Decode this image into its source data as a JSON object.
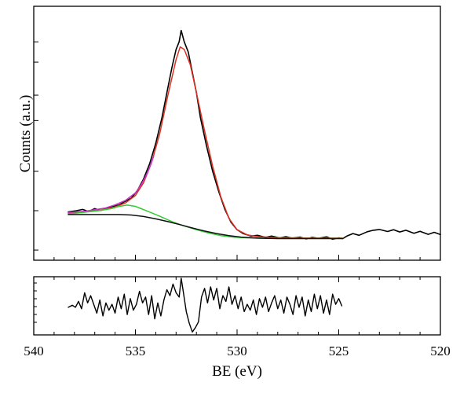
{
  "chart_data": [
    {
      "panel": "main",
      "type": "line",
      "xlabel": "BE (eV)",
      "ylabel": "Counts (a.u.)",
      "x_reversed": true,
      "xlim": [
        540,
        520
      ],
      "ylim": [
        0,
        100
      ],
      "grid": false,
      "series": [
        {
          "color": "#000000",
          "points": [
            [
              538.3,
              19
            ],
            [
              537.9,
              19.5
            ],
            [
              537.6,
              20
            ],
            [
              537.3,
              19.2
            ],
            [
              537.0,
              20.3
            ],
            [
              536.7,
              19.6
            ],
            [
              536.4,
              20.6
            ],
            [
              536.1,
              21.2
            ],
            [
              535.8,
              21.8
            ],
            [
              535.5,
              23.2
            ],
            [
              535.2,
              24.5
            ],
            [
              534.9,
              27.5
            ],
            [
              534.6,
              32
            ],
            [
              534.3,
              38
            ],
            [
              534.0,
              46
            ],
            [
              533.7,
              56
            ],
            [
              533.4,
              68
            ],
            [
              533.2,
              76
            ],
            [
              533.0,
              83
            ],
            [
              532.85,
              86
            ],
            [
              532.75,
              90.5
            ],
            [
              532.6,
              86
            ],
            [
              532.4,
              82
            ],
            [
              532.2,
              74
            ],
            [
              532.0,
              66
            ],
            [
              531.8,
              56
            ],
            [
              531.5,
              45
            ],
            [
              531.2,
              35
            ],
            [
              530.9,
              27
            ],
            [
              530.6,
              20
            ],
            [
              530.3,
              15
            ],
            [
              530.0,
              12
            ],
            [
              529.7,
              10.5
            ],
            [
              529.3,
              9.5
            ],
            [
              529.0,
              9.8
            ],
            [
              528.6,
              9
            ],
            [
              528.3,
              9.5
            ],
            [
              527.9,
              8.8
            ],
            [
              527.6,
              9.3
            ],
            [
              527.3,
              8.7
            ],
            [
              526.9,
              9.1
            ],
            [
              526.6,
              8.4
            ],
            [
              526.3,
              9
            ],
            [
              526.0,
              8.6
            ],
            [
              525.6,
              9.2
            ],
            [
              525.3,
              8.3
            ],
            [
              525.0,
              8.8
            ],
            [
              524.8,
              8.5
            ],
            [
              524.6,
              9.5
            ],
            [
              524.3,
              10.5
            ],
            [
              524.0,
              9.8
            ],
            [
              523.6,
              11.2
            ],
            [
              523.3,
              11.8
            ],
            [
              523.0,
              12.1
            ],
            [
              522.6,
              11.3
            ],
            [
              522.3,
              12
            ],
            [
              522.0,
              11.1
            ],
            [
              521.7,
              11.8
            ],
            [
              521.3,
              10.6
            ],
            [
              521.0,
              11.4
            ],
            [
              520.6,
              10.2
            ],
            [
              520.3,
              11
            ],
            [
              520.0,
              10.1
            ]
          ]
        },
        {
          "color": "#e03020",
          "points": [
            [
              538.3,
              18.5
            ],
            [
              537.5,
              19
            ],
            [
              536.5,
              20
            ],
            [
              536.0,
              21
            ],
            [
              535.5,
              22.5
            ],
            [
              535.0,
              25.5
            ],
            [
              534.6,
              30.5
            ],
            [
              534.2,
              38.5
            ],
            [
              533.8,
              50
            ],
            [
              533.4,
              65
            ],
            [
              533.0,
              79
            ],
            [
              532.8,
              84
            ],
            [
              532.6,
              83
            ],
            [
              532.3,
              77
            ],
            [
              532.0,
              66
            ],
            [
              531.6,
              51
            ],
            [
              531.2,
              37
            ],
            [
              530.8,
              25
            ],
            [
              530.4,
              16.5
            ],
            [
              530.0,
              12
            ],
            [
              529.5,
              10
            ],
            [
              529.0,
              9.3
            ],
            [
              528.0,
              8.9
            ],
            [
              527.0,
              8.8
            ],
            [
              526.0,
              8.7
            ],
            [
              525.0,
              8.7
            ],
            [
              524.8,
              8.7
            ]
          ]
        },
        {
          "color": "#cc33cc",
          "points": [
            [
              538.3,
              18.8
            ],
            [
              537.5,
              19.3
            ],
            [
              536.5,
              20.5
            ],
            [
              536.0,
              21.8
            ],
            [
              535.5,
              23.5
            ],
            [
              535.0,
              26.5
            ],
            [
              534.7,
              30
            ],
            [
              534.4,
              34.5
            ],
            [
              534.1,
              41
            ]
          ]
        },
        {
          "color": "#33cc33",
          "points": [
            [
              538.3,
              18.2
            ],
            [
              537.5,
              18.9
            ],
            [
              536.8,
              19.5
            ],
            [
              536.2,
              20.3
            ],
            [
              535.8,
              21.2
            ],
            [
              535.4,
              21.7
            ],
            [
              535.0,
              21.2
            ],
            [
              534.4,
              19.3
            ],
            [
              533.8,
              17.3
            ],
            [
              533.2,
              15.2
            ],
            [
              532.6,
              13.5
            ],
            [
              532.0,
              12
            ],
            [
              531.4,
              10.7
            ],
            [
              530.8,
              9.7
            ],
            [
              530.2,
              9.1
            ],
            [
              529.5,
              8.8
            ],
            [
              528.5,
              8.6
            ],
            [
              527.5,
              8.6
            ],
            [
              526.5,
              8.6
            ],
            [
              525.5,
              8.6
            ],
            [
              524.8,
              8.6
            ]
          ]
        },
        {
          "color": "#111111",
          "points": [
            [
              538.3,
              18
            ],
            [
              537.5,
              18
            ],
            [
              536.5,
              18
            ],
            [
              535.8,
              18
            ],
            [
              535.2,
              17.8
            ],
            [
              534.6,
              17.2
            ],
            [
              534.0,
              16.3
            ],
            [
              533.4,
              15.2
            ],
            [
              532.8,
              14
            ],
            [
              532.2,
              12.7
            ],
            [
              531.6,
              11.5
            ],
            [
              531.0,
              10.5
            ],
            [
              530.4,
              9.7
            ],
            [
              529.8,
              9.1
            ],
            [
              529.0,
              8.7
            ],
            [
              528.0,
              8.5
            ],
            [
              527.0,
              8.5
            ],
            [
              526.0,
              8.5
            ],
            [
              525.0,
              8.5
            ],
            [
              524.8,
              8.5
            ]
          ]
        }
      ]
    },
    {
      "panel": "residual",
      "type": "line",
      "xlabel": "BE (eV)",
      "x_reversed": true,
      "xlim": [
        540,
        520
      ],
      "ylim": [
        -1,
        1
      ],
      "xticks": [
        540,
        535,
        530,
        525,
        520
      ],
      "xtick_labels": [
        "540",
        "535",
        "530",
        "525",
        "520"
      ],
      "series": [
        {
          "color": "#000000",
          "points": [
            [
              538.3,
              -0.05
            ],
            [
              538.1,
              0.02
            ],
            [
              537.95,
              -0.05
            ],
            [
              537.8,
              0.15
            ],
            [
              537.65,
              -0.1
            ],
            [
              537.5,
              0.45
            ],
            [
              537.35,
              0.1
            ],
            [
              537.2,
              0.35
            ],
            [
              537.05,
              0.05
            ],
            [
              536.9,
              -0.25
            ],
            [
              536.75,
              0.2
            ],
            [
              536.6,
              -0.35
            ],
            [
              536.45,
              0.1
            ],
            [
              536.3,
              -0.15
            ],
            [
              536.15,
              0.05
            ],
            [
              536.0,
              -0.25
            ],
            [
              535.85,
              0.3
            ],
            [
              535.7,
              -0.1
            ],
            [
              535.55,
              0.4
            ],
            [
              535.4,
              -0.3
            ],
            [
              535.25,
              0.25
            ],
            [
              535.1,
              -0.15
            ],
            [
              534.95,
              0.05
            ],
            [
              534.8,
              0.5
            ],
            [
              534.65,
              0.1
            ],
            [
              534.5,
              0.3
            ],
            [
              534.35,
              -0.3
            ],
            [
              534.2,
              0.35
            ],
            [
              534.05,
              -0.45
            ],
            [
              533.9,
              0.1
            ],
            [
              533.75,
              -0.35
            ],
            [
              533.6,
              0.2
            ],
            [
              533.45,
              0.55
            ],
            [
              533.3,
              0.35
            ],
            [
              533.15,
              0.75
            ],
            [
              533.0,
              0.45
            ],
            [
              532.85,
              0.3
            ],
            [
              532.75,
              0.95
            ],
            [
              532.65,
              0.5
            ],
            [
              532.5,
              -0.2
            ],
            [
              532.35,
              -0.6
            ],
            [
              532.2,
              -0.9
            ],
            [
              532.05,
              -0.75
            ],
            [
              531.9,
              -0.55
            ],
            [
              531.75,
              0.3
            ],
            [
              531.6,
              0.6
            ],
            [
              531.45,
              0.1
            ],
            [
              531.3,
              0.65
            ],
            [
              531.15,
              0.2
            ],
            [
              531.0,
              0.6
            ],
            [
              530.85,
              -0.1
            ],
            [
              530.7,
              0.35
            ],
            [
              530.55,
              0.15
            ],
            [
              530.4,
              0.65
            ],
            [
              530.25,
              0.05
            ],
            [
              530.1,
              0.35
            ],
            [
              529.95,
              -0.1
            ],
            [
              529.8,
              0.3
            ],
            [
              529.65,
              -0.2
            ],
            [
              529.5,
              0.05
            ],
            [
              529.35,
              -0.15
            ],
            [
              529.2,
              0.2
            ],
            [
              529.05,
              -0.3
            ],
            [
              528.9,
              0.25
            ],
            [
              528.75,
              -0.05
            ],
            [
              528.6,
              0.3
            ],
            [
              528.45,
              -0.2
            ],
            [
              528.3,
              0.1
            ],
            [
              528.15,
              0.35
            ],
            [
              528.0,
              -0.1
            ],
            [
              527.85,
              0.2
            ],
            [
              527.7,
              -0.25
            ],
            [
              527.55,
              0.3
            ],
            [
              527.4,
              0.05
            ],
            [
              527.25,
              -0.3
            ],
            [
              527.1,
              0.35
            ],
            [
              526.95,
              -0.05
            ],
            [
              526.8,
              0.3
            ],
            [
              526.65,
              -0.35
            ],
            [
              526.5,
              0.2
            ],
            [
              526.35,
              -0.2
            ],
            [
              526.2,
              0.4
            ],
            [
              526.05,
              -0.1
            ],
            [
              525.9,
              0.35
            ],
            [
              525.75,
              -0.25
            ],
            [
              525.6,
              0.2
            ],
            [
              525.45,
              -0.3
            ],
            [
              525.3,
              0.4
            ],
            [
              525.15,
              0.05
            ],
            [
              525.0,
              0.25
            ],
            [
              524.85,
              0.0
            ]
          ]
        }
      ]
    }
  ]
}
